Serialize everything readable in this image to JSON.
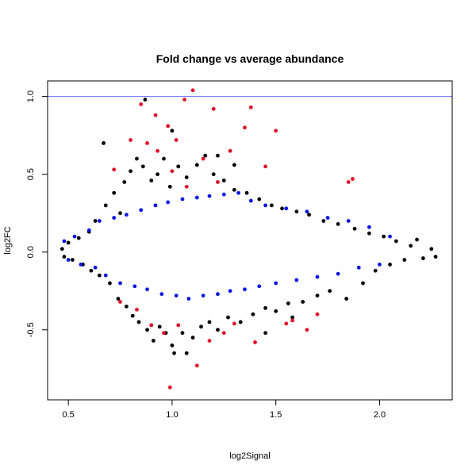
{
  "chart_data": {
    "type": "scatter",
    "title": "Fold change vs average abundance",
    "xlabel": "log2Signal",
    "ylabel": "log2FC",
    "xlim": [
      0.4,
      2.35
    ],
    "ylim": [
      -0.95,
      1.1
    ],
    "x_ticks": [
      0.5,
      1.0,
      1.5,
      2.0
    ],
    "x_tick_labels": [
      "0.5",
      "1.0",
      "1.5",
      "2.0"
    ],
    "y_ticks": [
      -0.5,
      0.0,
      0.5,
      1.0
    ],
    "y_tick_labels": [
      "-0.5",
      "0.0",
      "0.5",
      "1.0"
    ],
    "reference_line": {
      "y": 1.0,
      "color": "#6b6bff"
    },
    "grid": false,
    "colors": {
      "black": "#000000",
      "blue": "#0b14e6",
      "red": "#e0102a",
      "frame": "#000000"
    },
    "series": [
      {
        "color": "#000000",
        "points": [
          [
            0.47,
            0.02
          ],
          [
            0.48,
            -0.03
          ],
          [
            0.5,
            0.06
          ],
          [
            0.52,
            -0.05
          ],
          [
            0.55,
            0.09
          ],
          [
            0.57,
            -0.08
          ],
          [
            0.6,
            0.13
          ],
          [
            0.61,
            -0.12
          ],
          [
            0.63,
            0.2
          ],
          [
            0.65,
            -0.15
          ],
          [
            0.67,
            0.7
          ],
          [
            0.68,
            0.3
          ],
          [
            0.7,
            -0.2
          ],
          [
            0.72,
            0.38
          ],
          [
            0.74,
            -0.3
          ],
          [
            0.75,
            0.25
          ],
          [
            0.77,
            0.45
          ],
          [
            0.78,
            -0.35
          ],
          [
            0.8,
            0.52
          ],
          [
            0.81,
            -0.41
          ],
          [
            0.83,
            0.6
          ],
          [
            0.84,
            -0.45
          ],
          [
            0.86,
            0.55
          ],
          [
            0.87,
            0.98
          ],
          [
            0.88,
            -0.5
          ],
          [
            0.9,
            0.46
          ],
          [
            0.91,
            -0.57
          ],
          [
            0.93,
            0.5
          ],
          [
            0.94,
            -0.48
          ],
          [
            0.96,
            0.6
          ],
          [
            0.97,
            -0.52
          ],
          [
            0.99,
            0.42
          ],
          [
            1.0,
            -0.6
          ],
          [
            1.01,
            -0.65
          ],
          [
            1.03,
            0.55
          ],
          [
            1.05,
            -0.52
          ],
          [
            1.07,
            0.48
          ],
          [
            1.1,
            -0.55
          ],
          [
            1.12,
            0.56
          ],
          [
            1.14,
            -0.48
          ],
          [
            1.16,
            0.62
          ],
          [
            1.18,
            -0.45
          ],
          [
            1.2,
            0.5
          ],
          [
            1.22,
            -0.5
          ],
          [
            1.25,
            0.46
          ],
          [
            1.27,
            -0.42
          ],
          [
            1.3,
            0.4
          ],
          [
            1.33,
            -0.45
          ],
          [
            1.36,
            0.38
          ],
          [
            1.39,
            -0.4
          ],
          [
            1.42,
            0.34
          ],
          [
            1.45,
            -0.36
          ],
          [
            1.48,
            0.3
          ],
          [
            1.5,
            -0.38
          ],
          [
            1.53,
            0.28
          ],
          [
            1.56,
            -0.33
          ],
          [
            1.6,
            0.26
          ],
          [
            1.63,
            -0.32
          ],
          [
            1.66,
            0.24
          ],
          [
            1.7,
            -0.28
          ],
          [
            1.73,
            0.2
          ],
          [
            1.76,
            -0.25
          ],
          [
            1.8,
            0.18
          ],
          [
            1.84,
            -0.3
          ],
          [
            1.88,
            0.15
          ],
          [
            1.92,
            -0.2
          ],
          [
            1.95,
            0.12
          ],
          [
            1.98,
            -0.12
          ],
          [
            2.02,
            0.1
          ],
          [
            2.05,
            -0.08
          ],
          [
            2.08,
            0.07
          ],
          [
            2.12,
            -0.05
          ],
          [
            2.15,
            0.04
          ],
          [
            2.18,
            0.08
          ],
          [
            2.21,
            -0.04
          ],
          [
            2.25,
            0.02
          ],
          [
            2.27,
            -0.03
          ],
          [
            1.07,
            -0.65
          ],
          [
            1.3,
            0.56
          ],
          [
            1.58,
            -0.42
          ],
          [
            1.45,
            -0.52
          ],
          [
            1.0,
            0.78
          ],
          [
            1.22,
            0.62
          ],
          [
            1.03,
            0.55
          ]
        ]
      },
      {
        "color": "#0b14e6",
        "points": [
          [
            0.48,
            0.07
          ],
          [
            0.5,
            -0.05
          ],
          [
            0.53,
            0.1
          ],
          [
            0.56,
            -0.08
          ],
          [
            0.6,
            0.14
          ],
          [
            0.63,
            -0.1
          ],
          [
            0.65,
            0.2
          ],
          [
            0.68,
            -0.15
          ],
          [
            0.72,
            0.22
          ],
          [
            0.75,
            -0.2
          ],
          [
            0.78,
            0.24
          ],
          [
            0.82,
            -0.22
          ],
          [
            0.85,
            0.27
          ],
          [
            0.88,
            -0.24
          ],
          [
            0.92,
            0.3
          ],
          [
            0.95,
            -0.27
          ],
          [
            0.98,
            0.32
          ],
          [
            1.02,
            -0.28
          ],
          [
            1.05,
            0.34
          ],
          [
            1.08,
            -0.3
          ],
          [
            1.12,
            0.35
          ],
          [
            1.15,
            -0.28
          ],
          [
            1.18,
            0.36
          ],
          [
            1.22,
            -0.27
          ],
          [
            1.25,
            0.37
          ],
          [
            1.28,
            -0.25
          ],
          [
            1.32,
            0.38
          ],
          [
            1.35,
            -0.24
          ],
          [
            1.38,
            0.33
          ],
          [
            1.42,
            -0.22
          ],
          [
            1.45,
            0.3
          ],
          [
            1.5,
            -0.2
          ],
          [
            1.55,
            0.28
          ],
          [
            1.6,
            -0.18
          ],
          [
            1.65,
            0.26
          ],
          [
            1.7,
            -0.16
          ],
          [
            1.75,
            0.22
          ],
          [
            1.8,
            -0.14
          ],
          [
            1.85,
            0.2
          ],
          [
            1.9,
            -0.1
          ],
          [
            1.95,
            0.16
          ],
          [
            2.0,
            -0.08
          ],
          [
            2.05,
            0.1
          ]
        ]
      },
      {
        "color": "#e0102a",
        "points": [
          [
            0.72,
            0.53
          ],
          [
            0.75,
            -0.32
          ],
          [
            0.8,
            0.72
          ],
          [
            0.83,
            -0.37
          ],
          [
            0.85,
            0.95
          ],
          [
            0.88,
            0.7
          ],
          [
            0.9,
            -0.47
          ],
          [
            0.92,
            0.88
          ],
          [
            0.93,
            0.65
          ],
          [
            0.96,
            -0.52
          ],
          [
            0.98,
            0.81
          ],
          [
            0.99,
            -0.87
          ],
          [
            1.0,
            0.52
          ],
          [
            1.02,
            0.72
          ],
          [
            1.03,
            -0.47
          ],
          [
            1.06,
            0.98
          ],
          [
            1.07,
            0.42
          ],
          [
            1.1,
            1.04
          ],
          [
            1.12,
            -0.73
          ],
          [
            1.15,
            0.6
          ],
          [
            1.18,
            -0.57
          ],
          [
            1.2,
            0.92
          ],
          [
            1.22,
            0.45
          ],
          [
            1.25,
            -0.52
          ],
          [
            1.28,
            0.65
          ],
          [
            1.3,
            -0.46
          ],
          [
            1.35,
            0.8
          ],
          [
            1.38,
            0.93
          ],
          [
            1.4,
            -0.58
          ],
          [
            1.45,
            0.55
          ],
          [
            1.5,
            0.78
          ],
          [
            1.55,
            -0.46
          ],
          [
            1.58,
            -0.44
          ],
          [
            1.65,
            -0.5
          ],
          [
            1.7,
            -0.4
          ],
          [
            1.85,
            0.45
          ],
          [
            1.87,
            0.47
          ]
        ]
      }
    ]
  }
}
